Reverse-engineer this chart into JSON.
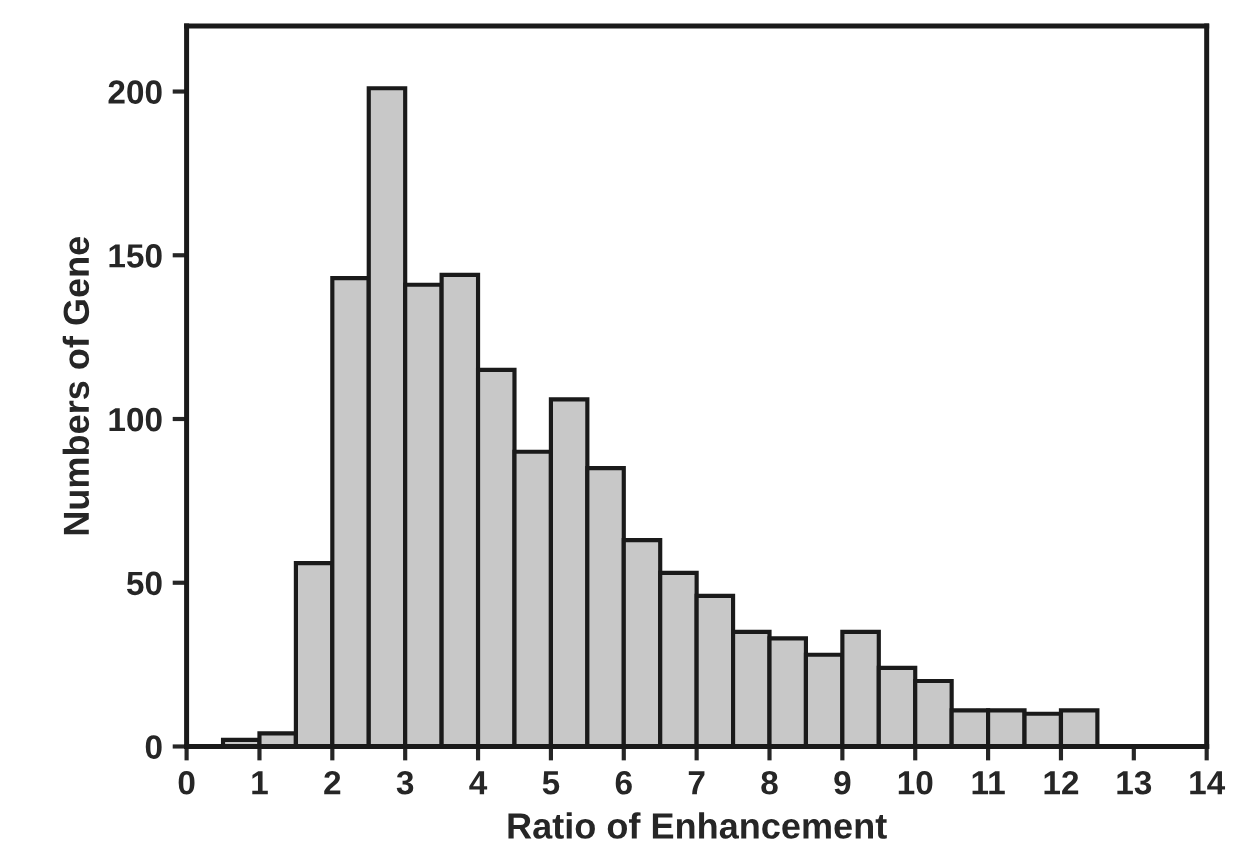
{
  "chart_data": {
    "type": "histogram",
    "xlabel": "Ratio of Enhancement",
    "ylabel": "Numbers of Gene",
    "bins": [
      0.5,
      1,
      1.5,
      2,
      2.5,
      3,
      3.5,
      4,
      4.5,
      5,
      5.5,
      6,
      6.5,
      7,
      7.5,
      8,
      8.5,
      9,
      9.5,
      10,
      10.5,
      11,
      11.5,
      12,
      12.5
    ],
    "values": [
      2,
      4,
      56,
      143,
      201,
      141,
      144,
      115,
      90,
      106,
      85,
      63,
      53,
      46,
      35,
      33,
      28,
      35,
      24,
      20,
      11,
      11,
      10,
      11
    ],
    "color": "#c8c8c8",
    "xlim": [
      0,
      14
    ],
    "xticks": [
      0,
      1,
      2,
      3,
      4,
      5,
      6,
      7,
      8,
      9,
      10,
      11,
      12,
      13,
      14
    ],
    "ylim": [
      0,
      220
    ],
    "yticks": [
      0,
      50,
      100,
      150,
      200
    ],
    "grid": false,
    "legend": false
  }
}
